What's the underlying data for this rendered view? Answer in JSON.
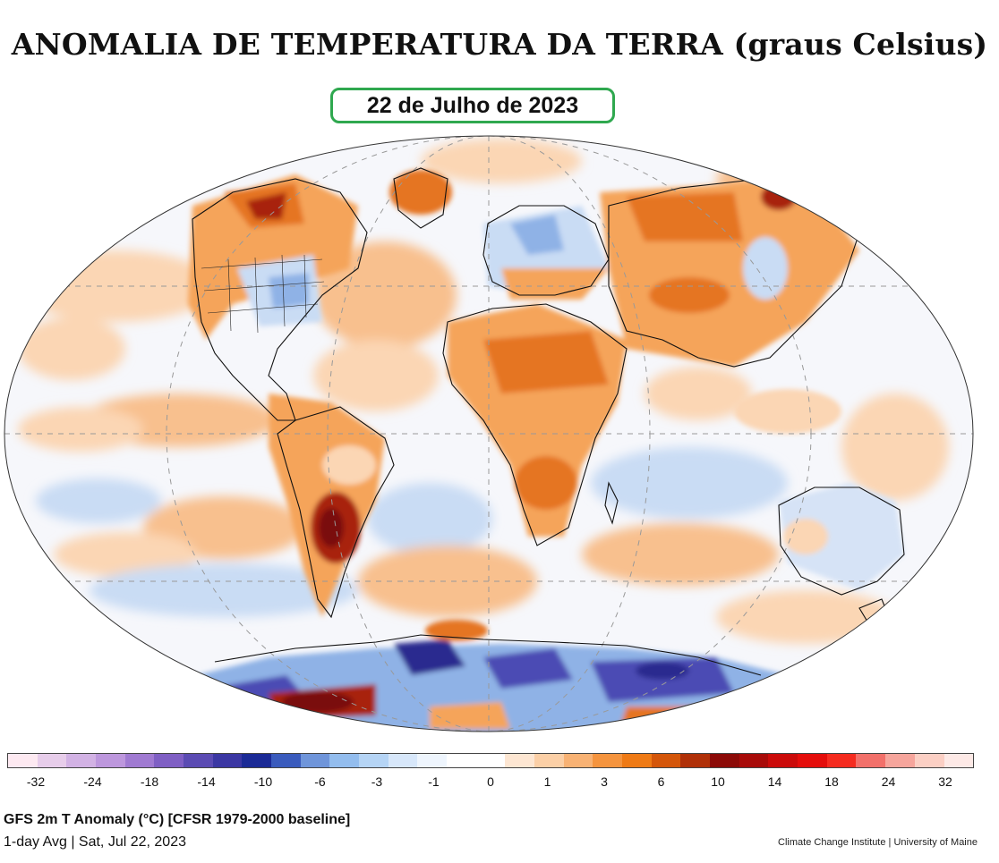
{
  "title": "ANOMALIA DE TEMPERATURA DA TERRA (graus Celsius)",
  "date_label": "22 de Julho de 2023",
  "colorbar": {
    "ticks": [
      "-32",
      "-24",
      "-18",
      "-14",
      "-10",
      "-6",
      "-3",
      "-1",
      "0",
      "1",
      "3",
      "6",
      "10",
      "14",
      "18",
      "24",
      "32"
    ],
    "colors": [
      "#fde9f1",
      "#e7cdea",
      "#d2b2e4",
      "#bd97dd",
      "#a07ad2",
      "#7f5fc4",
      "#5b4bb3",
      "#3b37a3",
      "#1b2a96",
      "#3a5bbd",
      "#6f95da",
      "#93bdee",
      "#b5d4f5",
      "#d7e7fa",
      "#eef5fd",
      "#ffffff",
      "#ffffff",
      "#fde6d2",
      "#fbcfa6",
      "#f8b274",
      "#f5943e",
      "#ef7a15",
      "#d4560a",
      "#b03008",
      "#8c0a07",
      "#a80b09",
      "#cb0b0a",
      "#e40d0b",
      "#f52b1f",
      "#f2706a",
      "#f6a59c",
      "#fbcfc4",
      "#fde9e6"
    ]
  },
  "footer": {
    "line1": "GFS 2m T Anomaly (°C) [CFSR 1979-2000 baseline]",
    "line2": "1-day Avg | Sat, Jul 22, 2023",
    "credit": "Climate Change Institute | University of Maine"
  },
  "palette": {
    "ocean_base": "#f6f7fb",
    "warm_light": "#fbd6b4",
    "warm_mid": "#f5a45a",
    "warm_strong": "#e57420",
    "hot": "#a8210c",
    "cool_light": "#c9dcf4",
    "cool_mid": "#8fb2e6",
    "cold": "#4b4bb4",
    "coldest": "#2b2a8f"
  }
}
